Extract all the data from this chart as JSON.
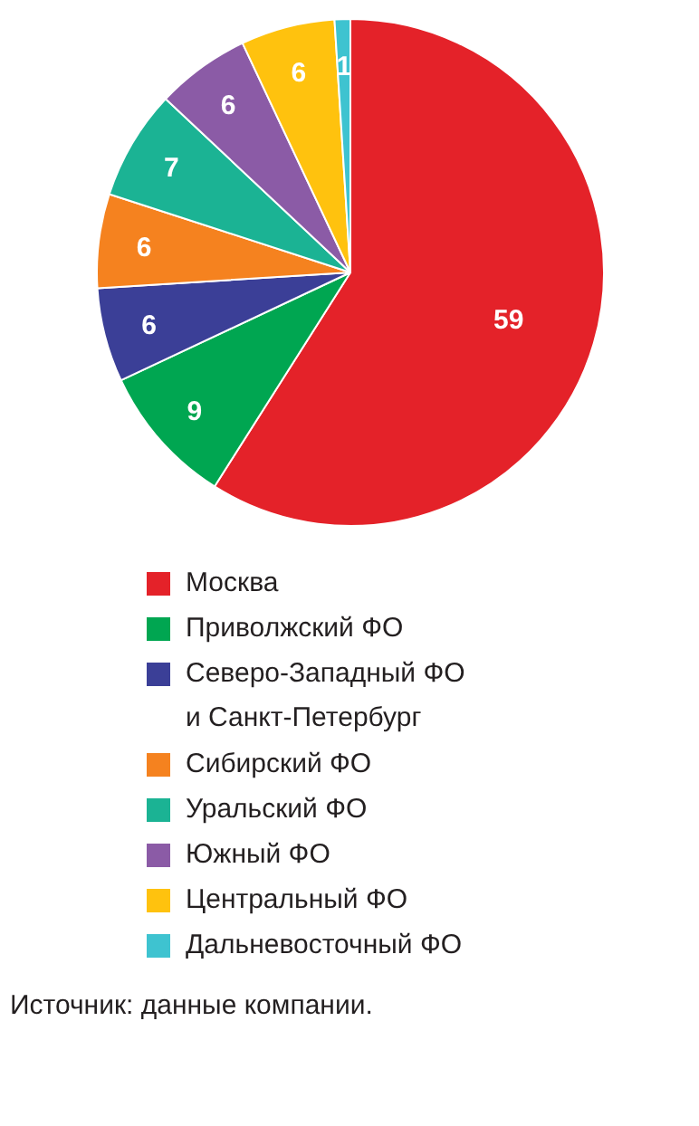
{
  "chart_data": {
    "type": "pie",
    "categories": [
      "Москва",
      "Приволжский ФО",
      "Северо-Западный ФО\nи Санкт-Петербург",
      "Сибирский ФО",
      "Уральский ФО",
      "Южный ФО",
      "Центральный ФО",
      "Дальневосточный ФО"
    ],
    "values": [
      59,
      9,
      6,
      6,
      7,
      6,
      6,
      1
    ],
    "colors": [
      "#e42229",
      "#00a651",
      "#3b3f97",
      "#f5821f",
      "#1bb394",
      "#8b5ba6",
      "#ffc20e",
      "#3ec3d0"
    ],
    "data_labels": true,
    "legend": "bottom",
    "annotations": [
      "Источник: данные компании."
    ]
  }
}
